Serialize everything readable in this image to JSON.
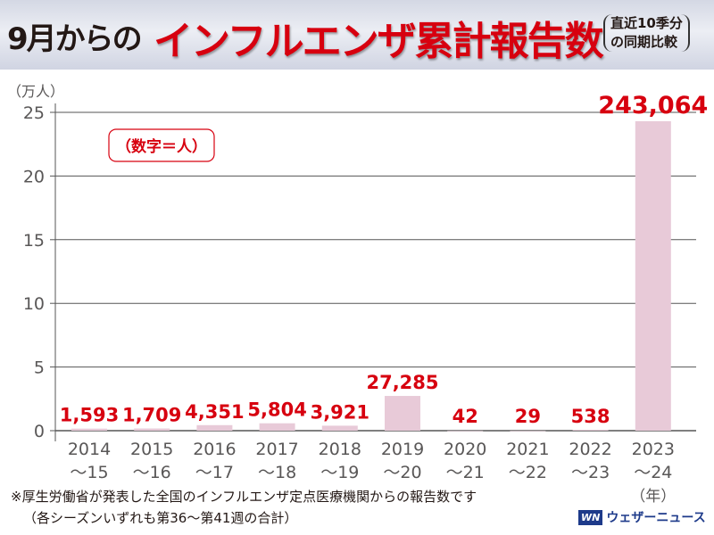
{
  "header": {
    "title_black": "9月からの",
    "title_red": "インフルエンザ累計報告数",
    "subtitle_line1": "直近10季分",
    "subtitle_line2": "の同期比較"
  },
  "chart_data": {
    "type": "bar",
    "title": "9月からのインフルエンザ累計報告数（直近10季分の同期比較）",
    "ylabel": "（万人）",
    "xlabel": "（年）",
    "unit_note": "（数字＝人）",
    "ylim": [
      0,
      25
    ],
    "yticks": [
      0,
      5,
      10,
      15,
      20,
      25
    ],
    "grid": true,
    "categories": [
      [
        "2014",
        "～15"
      ],
      [
        "2015",
        "～16"
      ],
      [
        "2016",
        "～17"
      ],
      [
        "2017",
        "～18"
      ],
      [
        "2018",
        "～19"
      ],
      [
        "2019",
        "～20"
      ],
      [
        "2020",
        "～21"
      ],
      [
        "2021",
        "～22"
      ],
      [
        "2022",
        "～23"
      ],
      [
        "2023",
        "～24"
      ]
    ],
    "values": [
      1593,
      1709,
      4351,
      5804,
      3921,
      27285,
      42,
      29,
      538,
      243064
    ],
    "labels": [
      "1,593",
      "1,709",
      "4,351",
      "5,804",
      "3,921",
      "27,285",
      "42",
      "29",
      "538",
      "243,064"
    ]
  },
  "colors": {
    "bar": "#e8cad8",
    "label": "#d7000f",
    "axis": "#555555",
    "tick": "#595757"
  },
  "footer": {
    "note1": "※厚生労働省が発表した全国のインフルエンザ定点医療機関からの報告数です",
    "note2": "（各シーズンいずれも第36～第41週の合計）",
    "logo_text": "ウェザーニュース",
    "logo_mark": "WN"
  }
}
